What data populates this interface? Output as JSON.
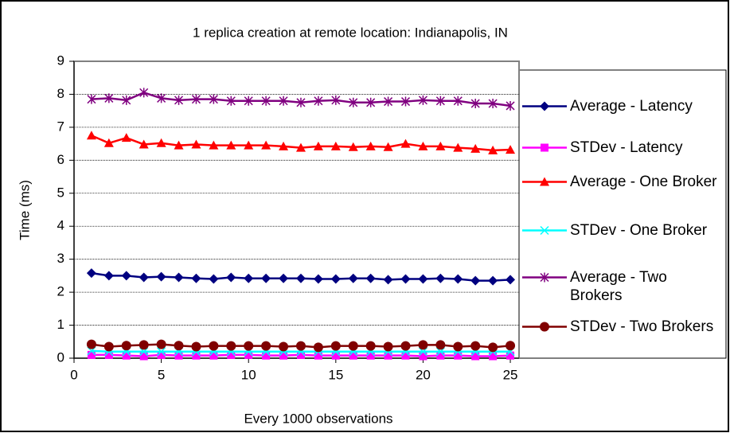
{
  "chart_data": {
    "type": "line",
    "title": "1 replica creation at remote location: Indianapolis, IN",
    "x_label": "Every 1000 observations",
    "y_label": "Time (ms)",
    "x": [
      1,
      2,
      3,
      4,
      5,
      6,
      7,
      8,
      9,
      10,
      11,
      12,
      13,
      14,
      15,
      16,
      17,
      18,
      19,
      20,
      21,
      22,
      23,
      24,
      25
    ],
    "xlim": [
      0,
      25.5
    ],
    "xticks": [
      0,
      5,
      10,
      15,
      20,
      25
    ],
    "ylim": [
      0,
      9
    ],
    "yticks": [
      0,
      1,
      2,
      3,
      4,
      5,
      6,
      7,
      8,
      9
    ],
    "grid": true,
    "legend": "right",
    "series": [
      {
        "name": "Average - Latency",
        "color": "#000080",
        "marker": "diamond",
        "values": [
          2.58,
          2.5,
          2.5,
          2.45,
          2.47,
          2.45,
          2.42,
          2.4,
          2.45,
          2.42,
          2.42,
          2.42,
          2.42,
          2.4,
          2.4,
          2.42,
          2.42,
          2.38,
          2.4,
          2.4,
          2.42,
          2.4,
          2.35,
          2.35,
          2.38
        ]
      },
      {
        "name": "STDev - Latency",
        "color": "#ff00ff",
        "marker": "square",
        "values": [
          0.1,
          0.1,
          0.08,
          0.06,
          0.1,
          0.08,
          0.08,
          0.08,
          0.1,
          0.1,
          0.08,
          0.08,
          0.1,
          0.08,
          0.08,
          0.08,
          0.08,
          0.08,
          0.08,
          0.06,
          0.08,
          0.08,
          0.06,
          0.06,
          0.08
        ]
      },
      {
        "name": "Average - One Broker",
        "color": "#ff0000",
        "marker": "triangle",
        "values": [
          6.75,
          6.52,
          6.68,
          6.48,
          6.52,
          6.45,
          6.48,
          6.45,
          6.45,
          6.45,
          6.45,
          6.42,
          6.38,
          6.42,
          6.42,
          6.4,
          6.42,
          6.4,
          6.5,
          6.42,
          6.42,
          6.38,
          6.35,
          6.3,
          6.32
        ]
      },
      {
        "name": "STDev - One Broker",
        "color": "#00ffff",
        "marker": "x",
        "values": [
          0.22,
          0.2,
          0.2,
          0.2,
          0.2,
          0.2,
          0.2,
          0.2,
          0.2,
          0.2,
          0.2,
          0.2,
          0.2,
          0.2,
          0.2,
          0.2,
          0.2,
          0.2,
          0.2,
          0.2,
          0.2,
          0.2,
          0.2,
          0.2,
          0.2
        ]
      },
      {
        "name": "Average - Two Brokers",
        "color": "#800080",
        "marker": "star",
        "values": [
          7.85,
          7.88,
          7.82,
          8.05,
          7.88,
          7.82,
          7.85,
          7.85,
          7.8,
          7.8,
          7.8,
          7.8,
          7.75,
          7.8,
          7.82,
          7.75,
          7.75,
          7.78,
          7.78,
          7.82,
          7.8,
          7.8,
          7.72,
          7.72,
          7.65
        ]
      },
      {
        "name": "STDev - Two Brokers",
        "color": "#800000",
        "marker": "circle",
        "values": [
          0.42,
          0.35,
          0.38,
          0.4,
          0.42,
          0.38,
          0.35,
          0.37,
          0.37,
          0.37,
          0.37,
          0.35,
          0.37,
          0.33,
          0.37,
          0.37,
          0.37,
          0.35,
          0.37,
          0.4,
          0.4,
          0.35,
          0.37,
          0.33,
          0.38
        ]
      }
    ]
  }
}
